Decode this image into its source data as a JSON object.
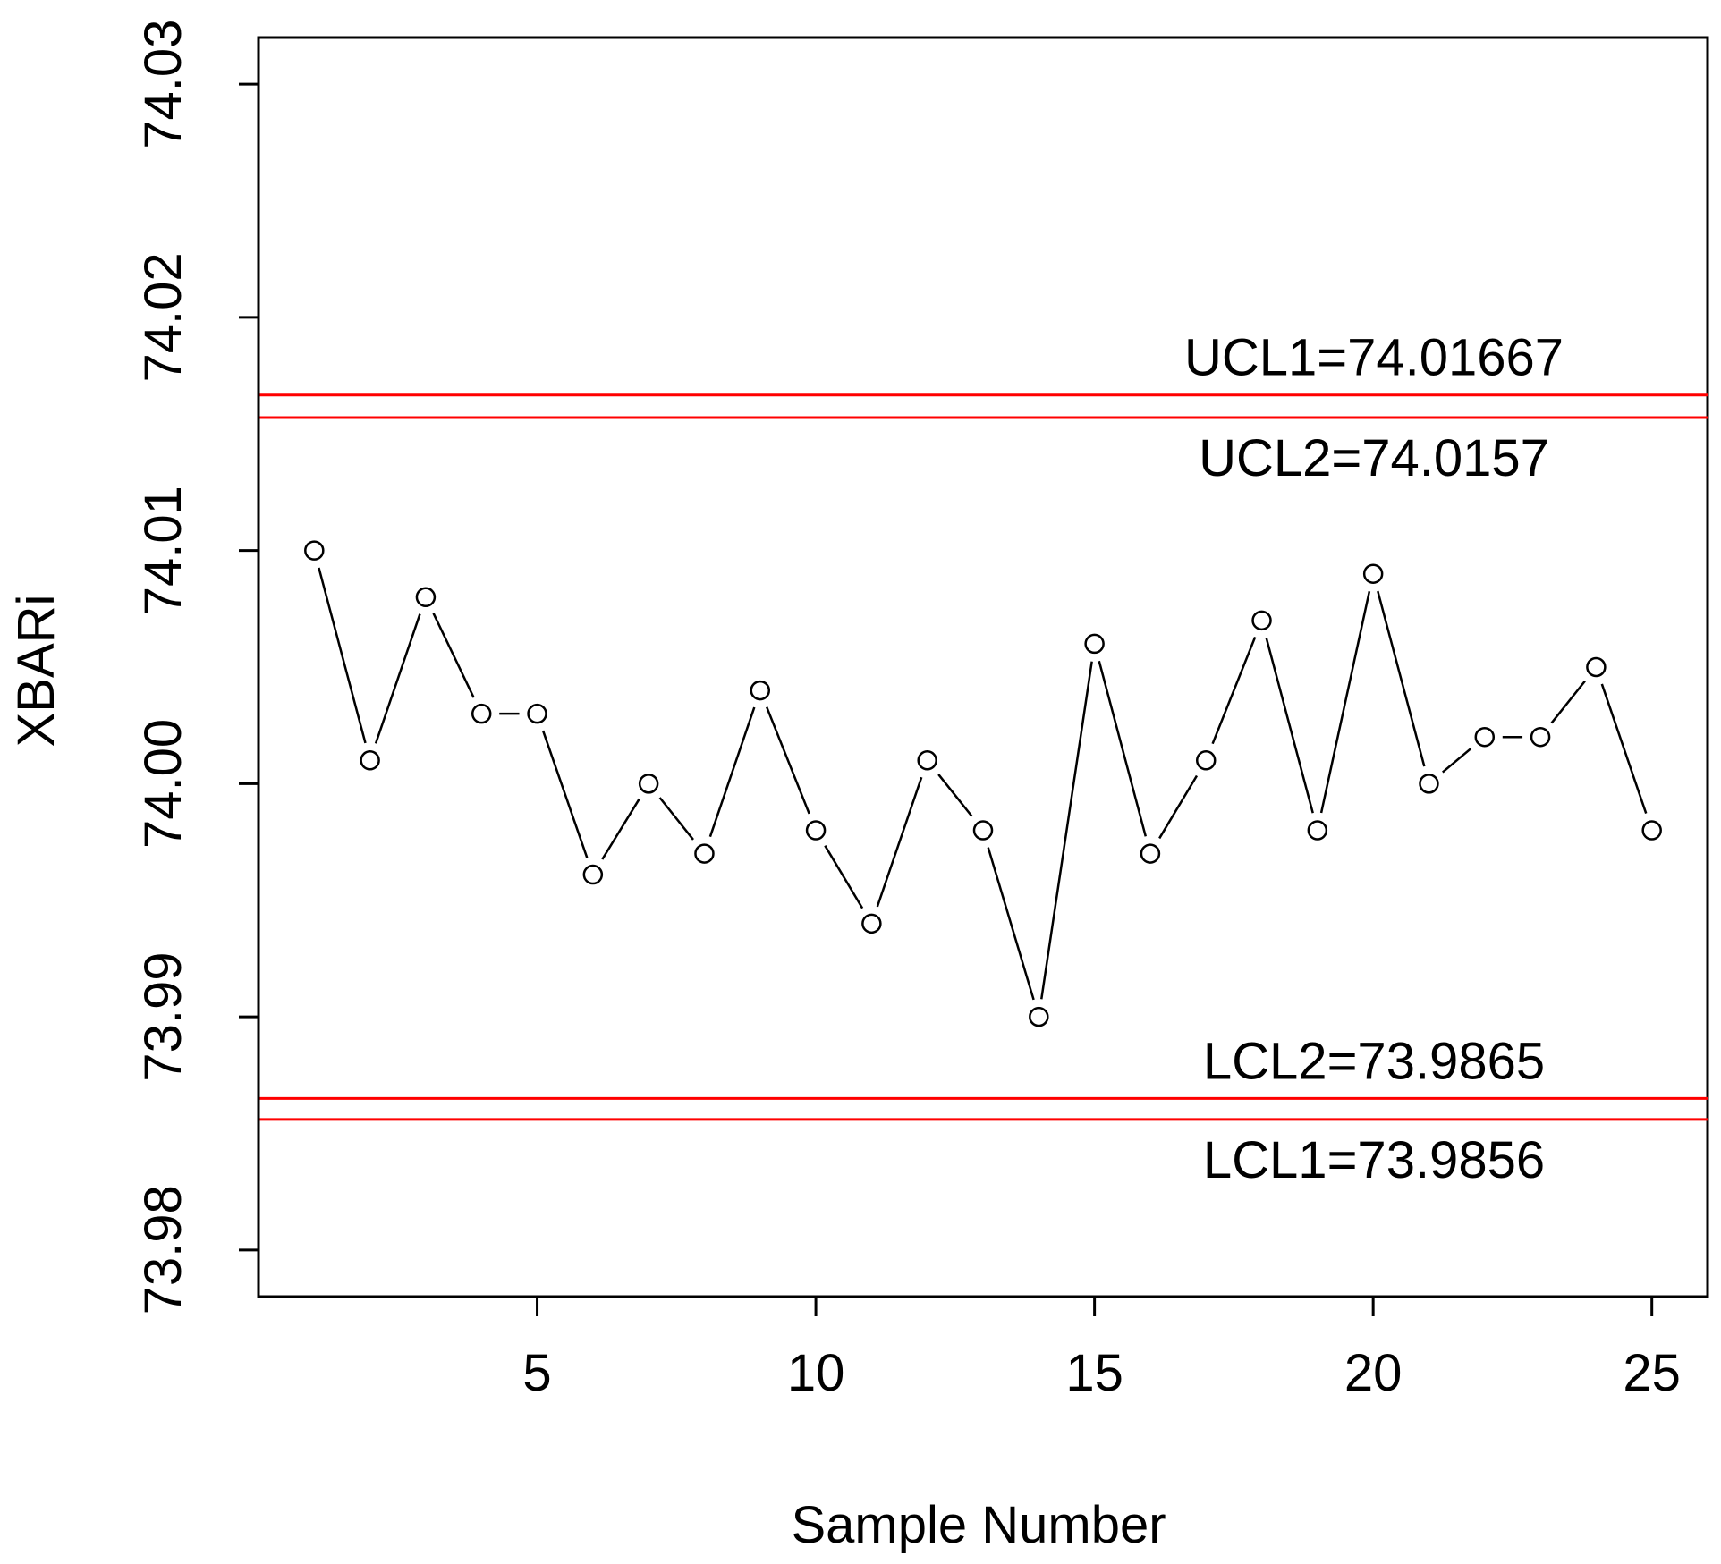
{
  "chart_data": {
    "type": "line",
    "title": "",
    "xlabel": "Sample Number",
    "ylabel": "XBARi",
    "xlim": [
      0,
      26
    ],
    "ylim": [
      73.978,
      74.032
    ],
    "x_ticks": [
      5,
      10,
      15,
      20,
      25
    ],
    "x_tick_labels": [
      "5",
      "10",
      "15",
      "20",
      "25"
    ],
    "y_ticks": [
      73.98,
      73.99,
      74.0,
      74.01,
      74.02,
      74.03
    ],
    "y_tick_labels": [
      "73.98",
      "73.99",
      "74.00",
      "74.01",
      "74.02",
      "74.03"
    ],
    "grid": false,
    "series": [
      {
        "x": [
          1,
          2,
          3,
          4,
          5,
          6,
          7,
          8,
          9,
          10,
          11,
          12,
          13,
          14,
          15,
          16,
          17,
          18,
          19,
          20,
          21,
          22,
          23,
          24,
          25
        ],
        "values": [
          74.01,
          74.001,
          74.008,
          74.003,
          74.003,
          73.9961,
          74.0,
          73.997,
          74.004,
          73.998,
          73.994,
          74.001,
          73.998,
          73.99,
          74.006,
          73.997,
          74.001,
          74.007,
          73.998,
          74.009,
          74.0,
          74.002,
          74.002,
          74.005,
          73.998
        ],
        "color": "#000000",
        "marker": "open-circle"
      }
    ],
    "control_limits": [
      {
        "label": "UCL1=74.01667",
        "value": 74.01667,
        "color": "#ff0000",
        "label_position": "above"
      },
      {
        "label": "UCL2=74.0157",
        "value": 74.0157,
        "color": "#ff0000",
        "label_position": "below"
      },
      {
        "label": "LCL2=73.9865",
        "value": 73.9865,
        "color": "#ff0000",
        "label_position": "above"
      },
      {
        "label": "LCL1=73.9856",
        "value": 73.9856,
        "color": "#ff0000",
        "label_position": "below"
      }
    ]
  }
}
